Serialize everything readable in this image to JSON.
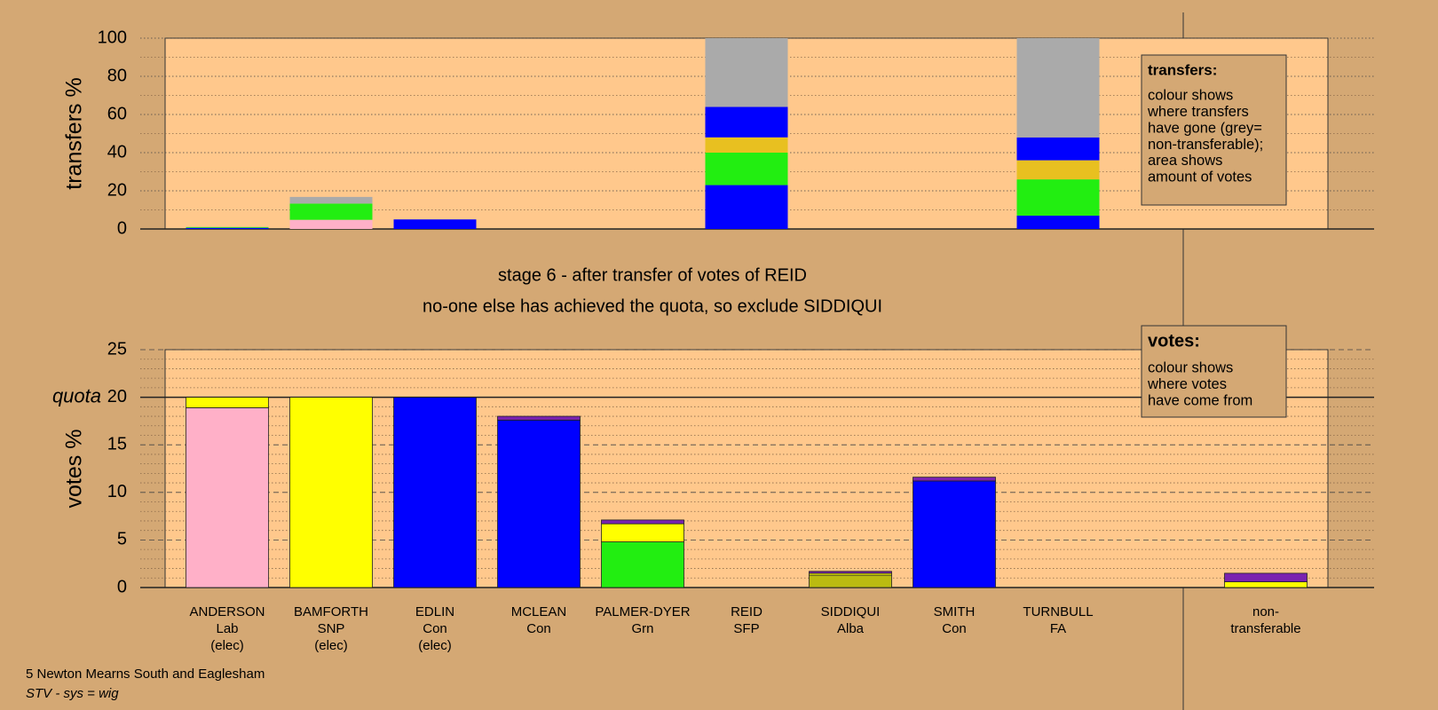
{
  "chart_data": [
    {
      "type": "stacked_bar",
      "ylabel": "transfers %",
      "ylim": [
        0,
        100
      ],
      "yticks": [
        0,
        20,
        40,
        60,
        80,
        100
      ],
      "grid": true,
      "note_title": "transfers:",
      "note_paragraphs": [
        [
          "colour shows",
          "where transfers",
          "have gone (grey=",
          "non-transferable);"
        ],
        [
          "area shows",
          "amount of votes"
        ]
      ],
      "series": [
        {
          "color": "#ffb0c8",
          "values": [
            null,
            4.8,
            null,
            null,
            null,
            null,
            null,
            null,
            null,
            null
          ]
        },
        {
          "color": "#0000ff",
          "values": [
            0.6,
            null,
            5,
            null,
            null,
            23,
            null,
            null,
            7,
            null
          ]
        },
        {
          "color": "#22ee11",
          "values": [
            0.4,
            8.5,
            null,
            null,
            null,
            17,
            null,
            null,
            19,
            null
          ]
        },
        {
          "color": "#e8c020",
          "values": [
            null,
            null,
            null,
            null,
            null,
            8,
            null,
            null,
            10,
            null
          ]
        },
        {
          "color": "#0000ff",
          "values": [
            null,
            null,
            null,
            null,
            null,
            16,
            null,
            null,
            12,
            null
          ]
        },
        {
          "color": "#aaaaaa",
          "values": [
            null,
            3.5,
            null,
            null,
            null,
            36,
            null,
            null,
            52,
            null
          ]
        }
      ]
    },
    {
      "type": "stacked_bar",
      "ylabel": "votes %",
      "ylim": [
        0,
        25
      ],
      "yticks": [
        0,
        5,
        10,
        15,
        20,
        25
      ],
      "grid": true,
      "quota": 20,
      "quota_label": "quota",
      "note_title": "votes:",
      "note_paragraphs": [
        [
          "colour shows",
          "where votes",
          "have come from"
        ]
      ],
      "categories": [
        [
          "ANDERSON",
          "Lab",
          "(elec)"
        ],
        [
          "BAMFORTH",
          "SNP",
          "(elec)"
        ],
        [
          "EDLIN",
          "Con",
          "(elec)"
        ],
        [
          "MCLEAN",
          "Con"
        ],
        [
          "PALMER-DYER",
          "Grn"
        ],
        [
          "REID",
          "SFP"
        ],
        [
          "SIDDIQUI",
          "Alba"
        ],
        [
          "SMITH",
          "Con"
        ],
        [
          "TURNBULL",
          "FA"
        ],
        [
          "non-",
          "transferable"
        ]
      ],
      "series": [
        {
          "color": "#ffb0c8",
          "values": [
            18.9,
            null,
            null,
            null,
            null,
            null,
            null,
            null,
            null,
            null
          ]
        },
        {
          "color": "#0000ff",
          "values": [
            null,
            null,
            20,
            17.6,
            null,
            null,
            null,
            11.2,
            null,
            null
          ]
        },
        {
          "color": "#22ee11",
          "values": [
            null,
            null,
            null,
            null,
            4.8,
            null,
            null,
            null,
            null,
            null
          ]
        },
        {
          "color": "#bbbb11",
          "values": [
            null,
            null,
            null,
            null,
            null,
            null,
            1.3,
            null,
            null,
            null
          ]
        },
        {
          "color": "#ffff00",
          "values": [
            1.1,
            20,
            null,
            null,
            1.9,
            null,
            0.2,
            null,
            null,
            0.6
          ]
        },
        {
          "color": "#7a22b0",
          "values": [
            null,
            null,
            null,
            0.4,
            0.4,
            null,
            0.2,
            0.4,
            null,
            0.9
          ]
        }
      ]
    }
  ],
  "stage_title": "stage 6 - after transfer of votes of REID",
  "stage_note": "no-one else has achieved the quota, so exclude SIDDIQUI",
  "footer_ward": "5 Newton Mearns South and Eaglesham",
  "footer_system": "STV - sys = wig"
}
